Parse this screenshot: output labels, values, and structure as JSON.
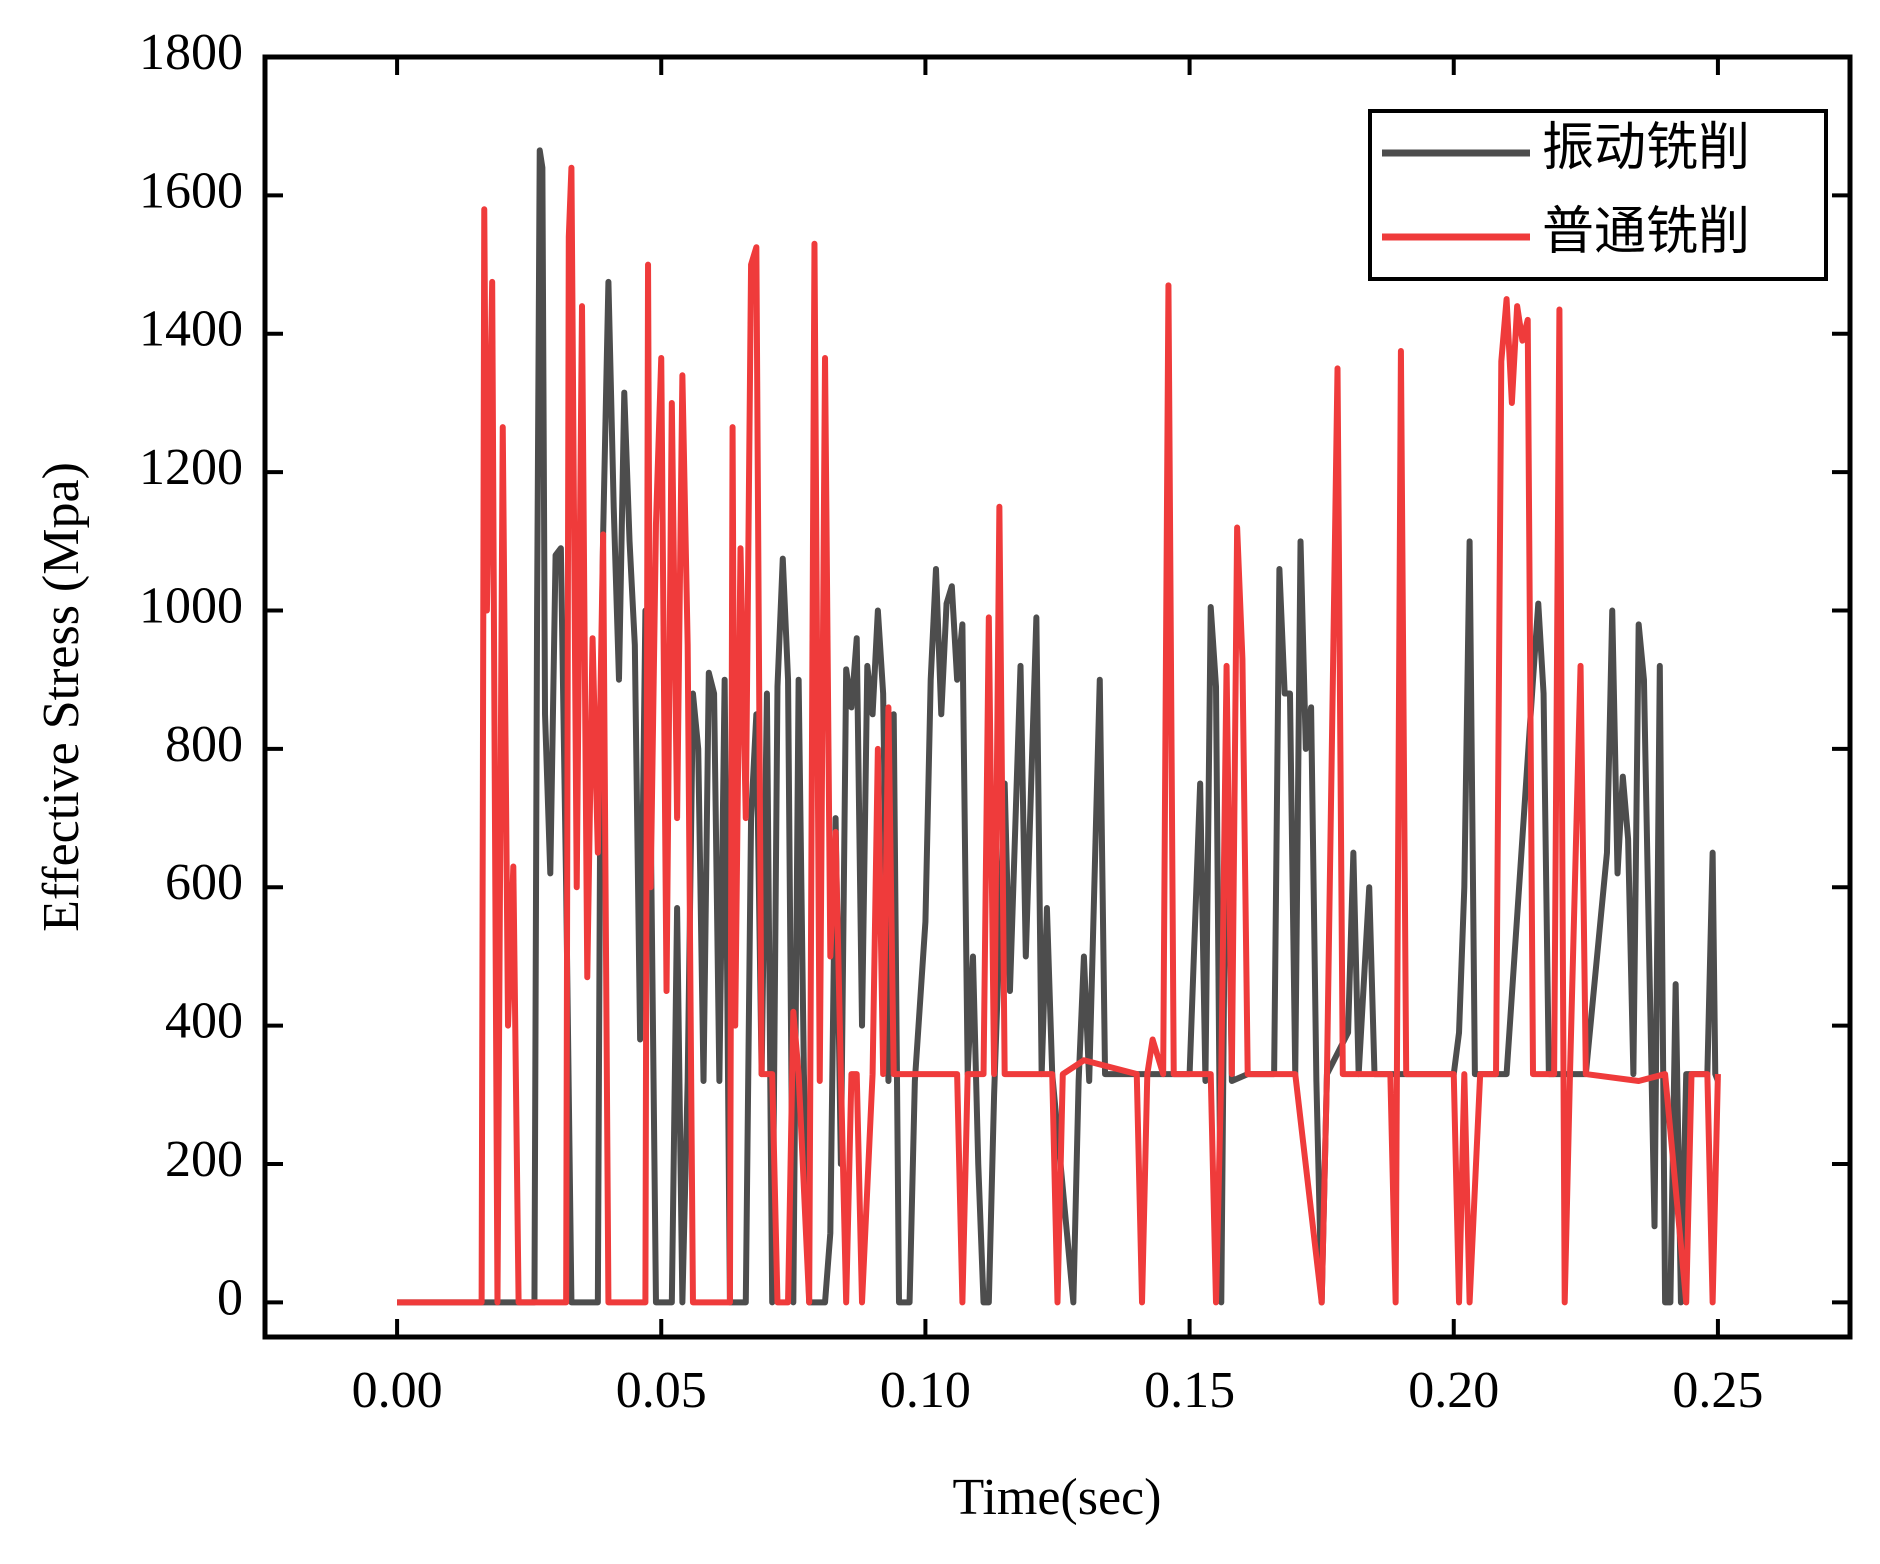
{
  "chart_data": {
    "type": "line",
    "x_label": "Time(sec)",
    "y_label": "Effective Stress (Mpa)",
    "xlim": [
      -0.025,
      0.275
    ],
    "ylim": [
      -50,
      1800
    ],
    "xticks": [
      {
        "value": 0,
        "label": "0.00"
      },
      {
        "value": 0.05,
        "label": "0.05"
      },
      {
        "value": 0.1,
        "label": "0.10"
      },
      {
        "value": 0.15,
        "label": "0.15"
      },
      {
        "value": 0.2,
        "label": "0.20"
      },
      {
        "value": 0.25,
        "label": "0.25"
      }
    ],
    "yticks": [
      0,
      200,
      400,
      600,
      800,
      1000,
      1200,
      1400,
      1600,
      1800
    ],
    "legend": "upper right",
    "series": [
      {
        "name": "振动铣削",
        "color": "#4d4d4d",
        "x": [
          0,
          0.026,
          0.0265,
          0.027,
          0.0275,
          0.028,
          0.029,
          0.03,
          0.031,
          0.032,
          0.033,
          0.038,
          0.0385,
          0.039,
          0.04,
          0.041,
          0.042,
          0.043,
          0.044,
          0.045,
          0.046,
          0.047,
          0.048,
          0.049,
          0.052,
          0.053,
          0.054,
          0.055,
          0.056,
          0.057,
          0.058,
          0.059,
          0.06,
          0.061,
          0.062,
          0.063,
          0.066,
          0.067,
          0.068,
          0.069,
          0.07,
          0.071,
          0.072,
          0.073,
          0.074,
          0.075,
          0.076,
          0.077,
          0.078,
          0.081,
          0.082,
          0.083,
          0.084,
          0.085,
          0.086,
          0.087,
          0.088,
          0.089,
          0.09,
          0.091,
          0.092,
          0.093,
          0.094,
          0.095,
          0.097,
          0.098,
          0.1,
          0.101,
          0.102,
          0.103,
          0.104,
          0.105,
          0.106,
          0.107,
          0.108,
          0.109,
          0.11,
          0.111,
          0.112,
          0.113,
          0.115,
          0.116,
          0.118,
          0.119,
          0.121,
          0.122,
          0.123,
          0.124,
          0.128,
          0.129,
          0.13,
          0.131,
          0.133,
          0.134,
          0.14,
          0.145,
          0.15,
          0.152,
          0.153,
          0.154,
          0.155,
          0.156,
          0.157,
          0.158,
          0.161,
          0.166,
          0.167,
          0.168,
          0.169,
          0.17,
          0.171,
          0.172,
          0.173,
          0.174,
          0.175,
          0.176,
          0.18,
          0.181,
          0.182,
          0.184,
          0.185,
          0.19,
          0.2,
          0.201,
          0.202,
          0.203,
          0.204,
          0.21,
          0.215,
          0.216,
          0.217,
          0.218,
          0.225,
          0.229,
          0.23,
          0.231,
          0.232,
          0.233,
          0.234,
          0.235,
          0.236,
          0.237,
          0.238,
          0.239,
          0.24,
          0.241,
          0.242,
          0.243,
          0.244,
          0.248,
          0.249,
          0.2495,
          0.25
        ],
        "values": [
          0,
          0,
          1000,
          1665,
          1640,
          850,
          620,
          1080,
          1090,
          600,
          0,
          0,
          800,
          1110,
          1475,
          1150,
          900,
          1315,
          1100,
          950,
          380,
          1000,
          700,
          0,
          0,
          570,
          0,
          320,
          880,
          800,
          320,
          910,
          880,
          320,
          900,
          0,
          0,
          700,
          850,
          330,
          880,
          0,
          890,
          1075,
          900,
          0,
          900,
          330,
          0,
          0,
          100,
          700,
          200,
          915,
          860,
          960,
          400,
          920,
          850,
          1000,
          880,
          320,
          850,
          0,
          0,
          320,
          550,
          900,
          1060,
          850,
          1010,
          1035,
          900,
          980,
          330,
          500,
          200,
          0,
          0,
          300,
          750,
          450,
          920,
          500,
          990,
          330,
          570,
          330,
          0,
          320,
          500,
          320,
          900,
          330,
          330,
          330,
          330,
          750,
          320,
          1005,
          890,
          0,
          870,
          320,
          330,
          330,
          1060,
          880,
          880,
          330,
          1100,
          800,
          860,
          320,
          0,
          330,
          390,
          650,
          330,
          600,
          330,
          330,
          330,
          390,
          600,
          1100,
          330,
          330,
          900,
          1010,
          880,
          330,
          330,
          650,
          1000,
          620,
          760,
          670,
          330,
          980,
          900,
          500,
          110,
          920,
          0,
          0,
          460,
          0,
          330,
          330,
          650,
          330,
          320
        ]
      },
      {
        "name": "普通铣削",
        "color": "#ef3b3b",
        "x": [
          0,
          0.016,
          0.0165,
          0.017,
          0.018,
          0.019,
          0.02,
          0.021,
          0.022,
          0.023,
          0.032,
          0.0325,
          0.033,
          0.034,
          0.035,
          0.036,
          0.037,
          0.038,
          0.039,
          0.04,
          0.047,
          0.0475,
          0.048,
          0.049,
          0.05,
          0.051,
          0.052,
          0.053,
          0.054,
          0.055,
          0.056,
          0.063,
          0.0635,
          0.064,
          0.065,
          0.066,
          0.067,
          0.068,
          0.069,
          0.071,
          0.072,
          0.074,
          0.075,
          0.076,
          0.078,
          0.079,
          0.08,
          0.081,
          0.082,
          0.083,
          0.084,
          0.085,
          0.086,
          0.087,
          0.088,
          0.09,
          0.091,
          0.092,
          0.093,
          0.094,
          0.098,
          0.1,
          0.106,
          0.107,
          0.108,
          0.111,
          0.112,
          0.113,
          0.114,
          0.115,
          0.124,
          0.125,
          0.126,
          0.13,
          0.14,
          0.141,
          0.142,
          0.143,
          0.145,
          0.146,
          0.147,
          0.154,
          0.155,
          0.156,
          0.157,
          0.158,
          0.159,
          0.16,
          0.161,
          0.17,
          0.175,
          0.176,
          0.178,
          0.179,
          0.188,
          0.189,
          0.19,
          0.191,
          0.2,
          0.201,
          0.202,
          0.203,
          0.205,
          0.208,
          0.209,
          0.21,
          0.211,
          0.212,
          0.213,
          0.214,
          0.215,
          0.219,
          0.22,
          0.221,
          0.222,
          0.224,
          0.225,
          0.235,
          0.24,
          0.244,
          0.245,
          0.248,
          0.249,
          0.25
        ],
        "values": [
          0,
          0,
          1580,
          1000,
          1475,
          0,
          1265,
          400,
          630,
          0,
          0,
          1540,
          1640,
          600,
          1440,
          470,
          960,
          650,
          1110,
          0,
          0,
          1500,
          600,
          1125,
          1365,
          450,
          1300,
          700,
          1340,
          950,
          0,
          0,
          1265,
          400,
          1090,
          700,
          1500,
          1525,
          330,
          330,
          0,
          0,
          420,
          330,
          0,
          1530,
          320,
          1365,
          500,
          680,
          330,
          0,
          330,
          330,
          0,
          330,
          800,
          330,
          860,
          330,
          330,
          330,
          330,
          0,
          330,
          330,
          990,
          330,
          1150,
          330,
          330,
          0,
          330,
          350,
          330,
          0,
          330,
          380,
          330,
          1470,
          330,
          330,
          0,
          330,
          920,
          330,
          1120,
          930,
          330,
          330,
          0,
          330,
          1350,
          330,
          330,
          0,
          1375,
          330,
          330,
          0,
          330,
          0,
          330,
          330,
          1360,
          1450,
          1300,
          1440,
          1390,
          1420,
          330,
          330,
          1435,
          0,
          330,
          920,
          330,
          320,
          330,
          0,
          330,
          330,
          0,
          330
        ]
      }
    ]
  }
}
